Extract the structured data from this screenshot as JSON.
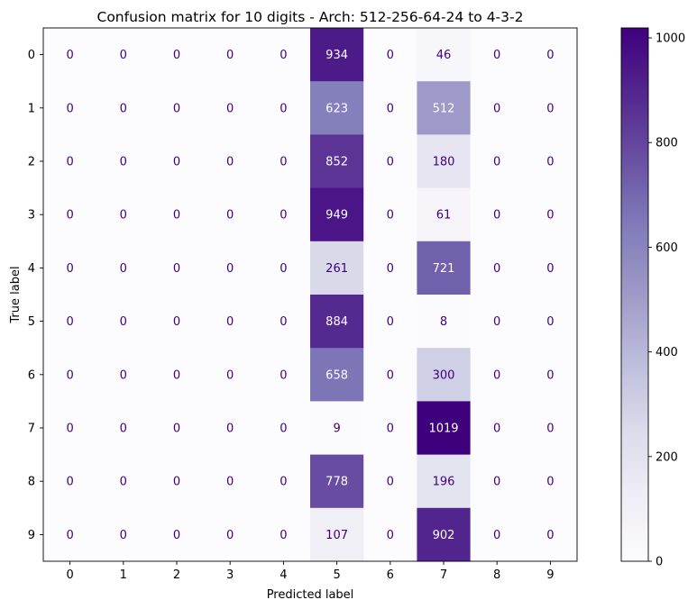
{
  "chart_data": {
    "type": "heatmap",
    "title": "Confusion matrix for 10 digits - Arch: 512-256-64-24 to 4-3-2",
    "xlabel": "Predicted label",
    "ylabel": "True label",
    "x_categories": [
      "0",
      "1",
      "2",
      "3",
      "4",
      "5",
      "6",
      "7",
      "8",
      "9"
    ],
    "y_categories": [
      "0",
      "1",
      "2",
      "3",
      "4",
      "5",
      "6",
      "7",
      "8",
      "9"
    ],
    "values": [
      [
        0,
        0,
        0,
        0,
        0,
        934,
        0,
        46,
        0,
        0
      ],
      [
        0,
        0,
        0,
        0,
        0,
        623,
        0,
        512,
        0,
        0
      ],
      [
        0,
        0,
        0,
        0,
        0,
        852,
        0,
        180,
        0,
        0
      ],
      [
        0,
        0,
        0,
        0,
        0,
        949,
        0,
        61,
        0,
        0
      ],
      [
        0,
        0,
        0,
        0,
        0,
        261,
        0,
        721,
        0,
        0
      ],
      [
        0,
        0,
        0,
        0,
        0,
        884,
        0,
        8,
        0,
        0
      ],
      [
        0,
        0,
        0,
        0,
        0,
        658,
        0,
        300,
        0,
        0
      ],
      [
        0,
        0,
        0,
        0,
        0,
        9,
        0,
        1019,
        0,
        0
      ],
      [
        0,
        0,
        0,
        0,
        0,
        778,
        0,
        196,
        0,
        0
      ],
      [
        0,
        0,
        0,
        0,
        0,
        107,
        0,
        902,
        0,
        0
      ]
    ],
    "colormap": "Purples",
    "color_low": "#fcfbfd",
    "color_high": "#3f007d",
    "colorbar": {
      "min": 0,
      "max": 1019,
      "ticks": [
        0,
        200,
        400,
        600,
        800,
        1000
      ]
    },
    "grid": false
  }
}
